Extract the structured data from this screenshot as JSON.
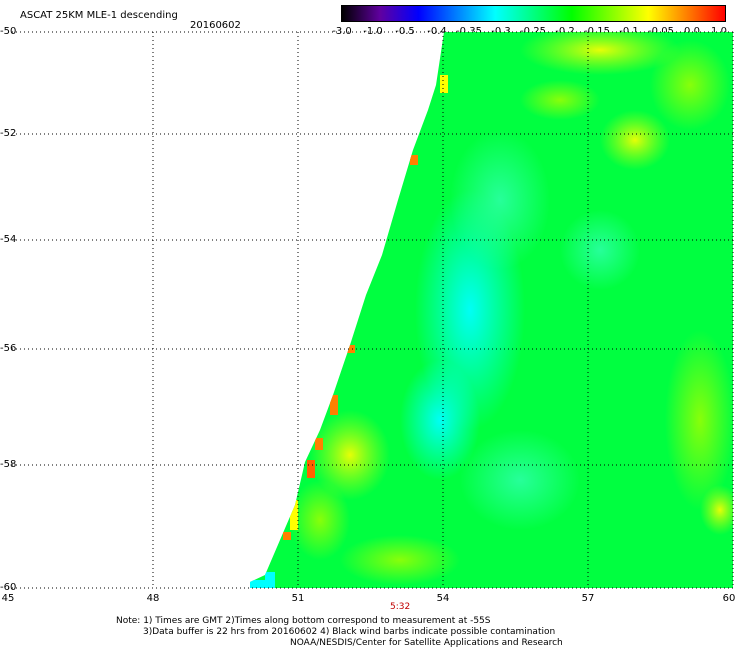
{
  "title": "ASCAT 25KM MLE-1 descending",
  "date": "20160602",
  "colorbar": {
    "labels": [
      "-3.0",
      "-1.0",
      "-0.5",
      "-0.4",
      "-0.35",
      "-0.3",
      "-0.25",
      "-0.2",
      "-0.15",
      "-0.1",
      "-0.05",
      "0.0",
      "1.0"
    ],
    "colors": [
      "#000000",
      "#6000a0",
      "#0000ff",
      "#0080ff",
      "#00ffff",
      "#00ff80",
      "#00ff00",
      "#80ff00",
      "#ffff00",
      "#ff8000",
      "#ff0000"
    ]
  },
  "axes": {
    "y_labels": [
      "-50",
      "-52",
      "-54",
      "-56",
      "-58",
      "-60"
    ],
    "x_labels": [
      "45",
      "48",
      "51",
      "54",
      "57",
      "60"
    ]
  },
  "time_marker": "5:32",
  "notes": {
    "line1": "Note: 1) Times are GMT 2)Times along bottom correspond to measurement at -55S",
    "line2": "3)Data buffer is 22 hrs from 20160602 4) Black wind barbs indicate possible contamination",
    "line3": "NOAA/NESDIS/Center for Satellite Applications and Research"
  }
}
